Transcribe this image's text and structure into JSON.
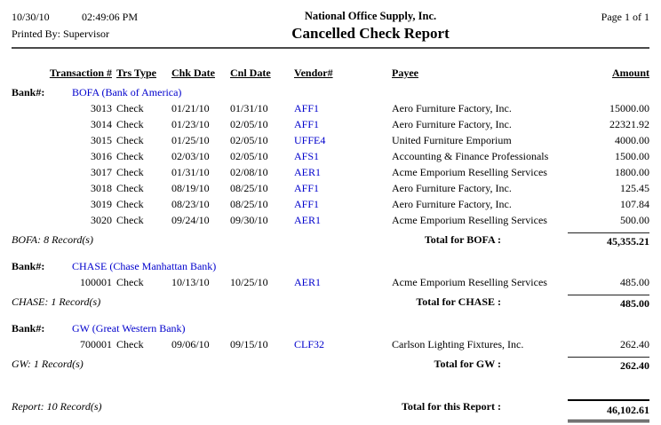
{
  "page_header": {
    "date": "10/30/10",
    "time": "02:49:06 PM",
    "printed_by": "Printed By: Supervisor",
    "company": "National Office Supply, Inc.",
    "report_title": "Cancelled Check Report",
    "page_info": "Page 1 of 1"
  },
  "table": {
    "columns": [
      "Transaction #",
      "Trs Type",
      "Chk Date",
      "Cnl Date",
      "Vendor#",
      "Payee",
      "Amount"
    ],
    "bank_label": "Bank#:",
    "groups": [
      {
        "bank_name": "BOFA (Bank of America)",
        "rows": [
          {
            "transaction": "3013",
            "trs_type": "Check",
            "chk_date": "01/21/10",
            "cnl_date": "01/31/10",
            "vendor": "AFF1",
            "payee": "Aero Furniture Factory, Inc.",
            "amount": "15000.00"
          },
          {
            "transaction": "3014",
            "trs_type": "Check",
            "chk_date": "01/23/10",
            "cnl_date": "02/05/10",
            "vendor": "AFF1",
            "payee": "Aero Furniture Factory, Inc.",
            "amount": "22321.92"
          },
          {
            "transaction": "3015",
            "trs_type": "Check",
            "chk_date": "01/25/10",
            "cnl_date": "02/05/10",
            "vendor": "UFFE4",
            "payee": "United Furniture Emporium",
            "amount": "4000.00"
          },
          {
            "transaction": "3016",
            "trs_type": "Check",
            "chk_date": "02/03/10",
            "cnl_date": "02/05/10",
            "vendor": "AFS1",
            "payee": "Accounting & Finance Professionals",
            "amount": "1500.00"
          },
          {
            "transaction": "3017",
            "trs_type": "Check",
            "chk_date": "01/31/10",
            "cnl_date": "02/08/10",
            "vendor": "AER1",
            "payee": "Acme Emporium Reselling Services",
            "amount": "1800.00"
          },
          {
            "transaction": "3018",
            "trs_type": "Check",
            "chk_date": "08/19/10",
            "cnl_date": "08/25/10",
            "vendor": "AFF1",
            "payee": "Aero Furniture Factory, Inc.",
            "amount": "125.45"
          },
          {
            "transaction": "3019",
            "trs_type": "Check",
            "chk_date": "08/23/10",
            "cnl_date": "08/25/10",
            "vendor": "AFF1",
            "payee": "Aero Furniture Factory, Inc.",
            "amount": "107.84"
          },
          {
            "transaction": "3020",
            "trs_type": "Check",
            "chk_date": "09/24/10",
            "cnl_date": "09/30/10",
            "vendor": "AER1",
            "payee": "Acme Emporium Reselling Services",
            "amount": "500.00"
          }
        ],
        "record_count": "BOFA: 8 Record(s)",
        "total_label": "Total for BOFA :",
        "total_amount": "45,355.21"
      },
      {
        "bank_name": "CHASE (Chase Manhattan Bank)",
        "rows": [
          {
            "transaction": "100001",
            "trs_type": "Check",
            "chk_date": "10/13/10",
            "cnl_date": "10/25/10",
            "vendor": "AER1",
            "payee": "Acme Emporium Reselling Services",
            "amount": "485.00"
          }
        ],
        "record_count": "CHASE: 1 Record(s)",
        "total_label": "Total for CHASE :",
        "total_amount": "485.00"
      },
      {
        "bank_name": "GW (Great Western Bank)",
        "rows": [
          {
            "transaction": "700001",
            "trs_type": "Check",
            "chk_date": "09/06/10",
            "cnl_date": "09/15/10",
            "vendor": "CLF32",
            "payee": "Carlson Lighting Fixtures, Inc.",
            "amount": "262.40"
          }
        ],
        "record_count": "GW: 1 Record(s)",
        "total_label": "Total for GW :",
        "total_amount": "262.40"
      }
    ],
    "report_footer": {
      "record_count": "Report: 10 Record(s)",
      "total_label": "Total for this Report :",
      "total_amount": "46,102.61"
    }
  },
  "colors": {
    "link_blue": "#0000CC",
    "text": "#000000"
  }
}
